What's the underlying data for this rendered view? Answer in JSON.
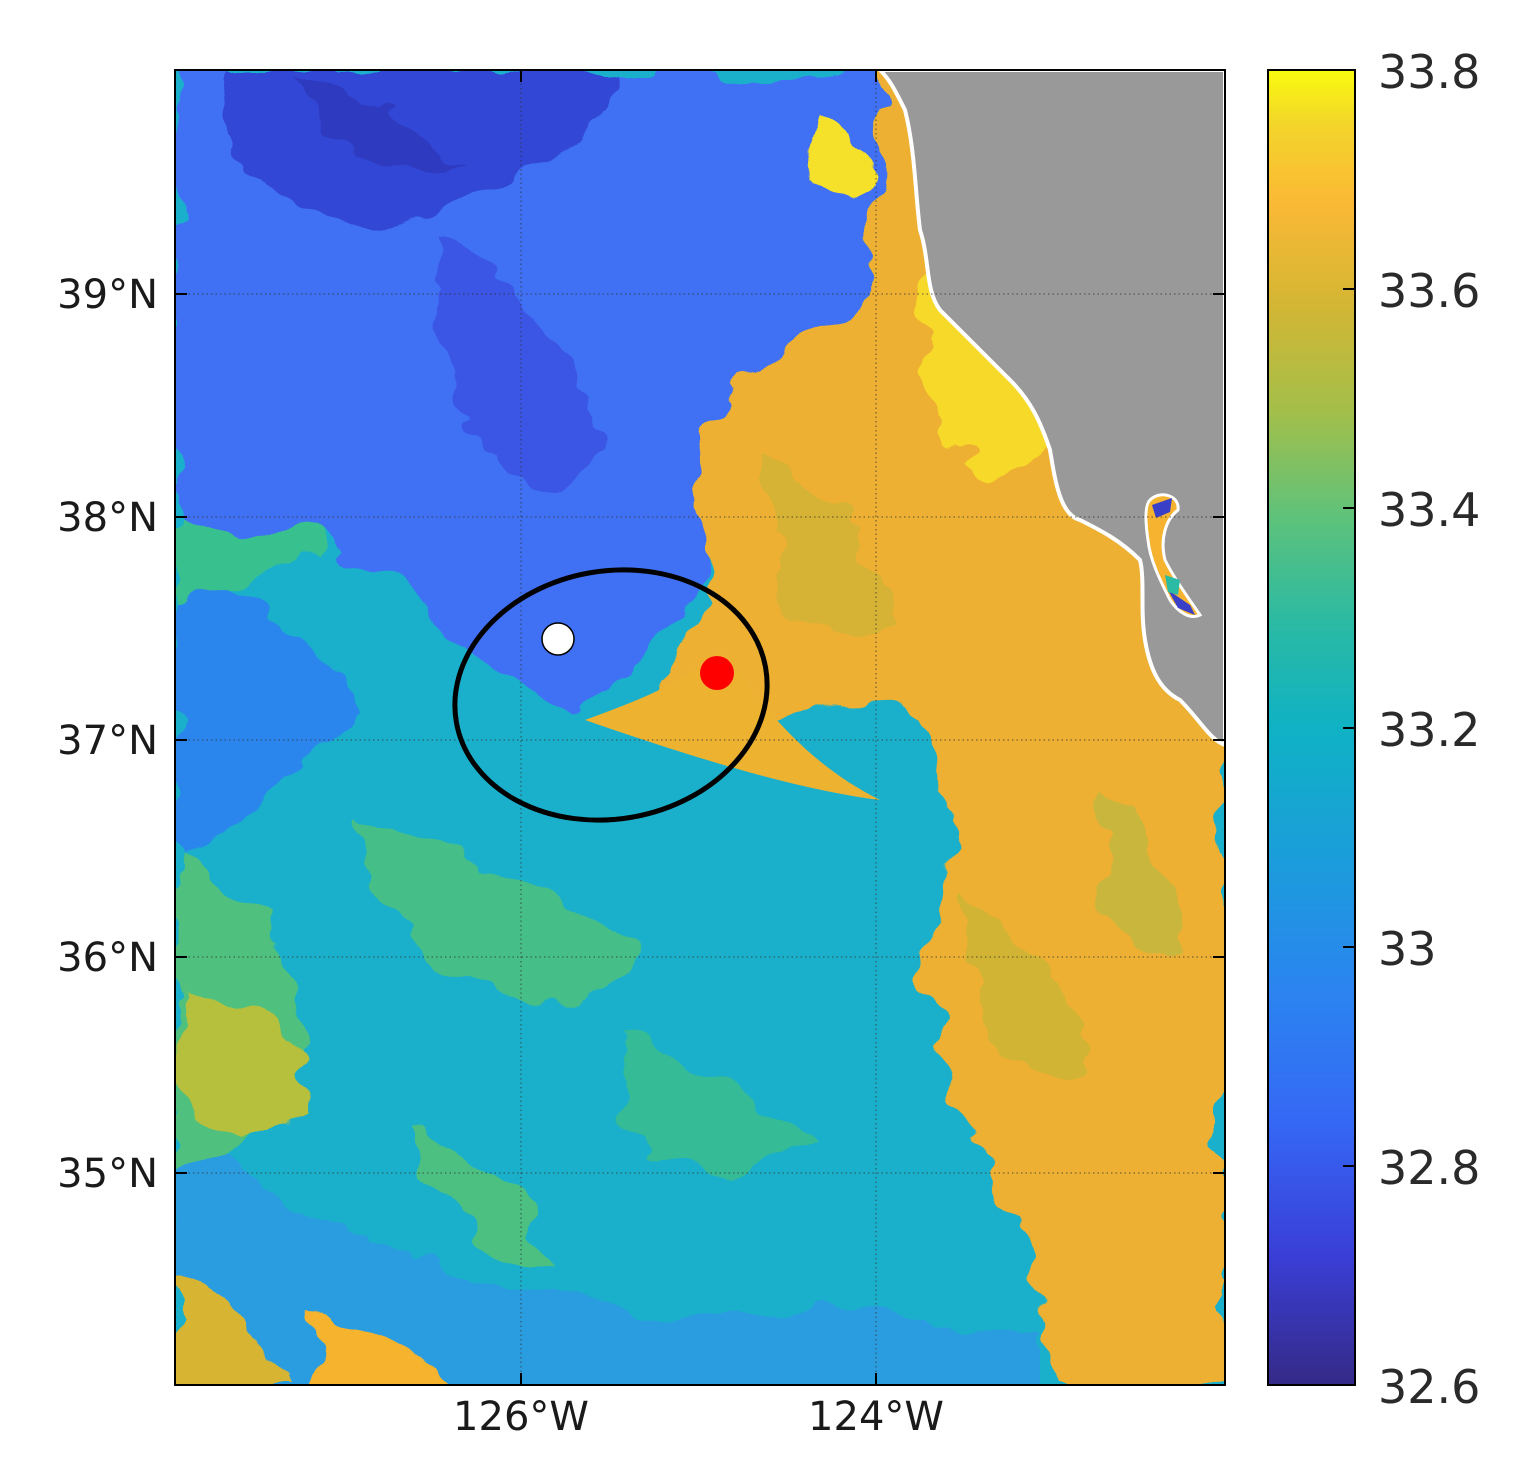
{
  "map": {
    "variable_colorbar": {
      "min": 32.6,
      "max": 33.8,
      "tick_labels": [
        "32.6",
        "32.8",
        "33",
        "33.2",
        "33.4",
        "33.6",
        "33.8"
      ],
      "colormap": "parula"
    },
    "axes": {
      "lat_ticks": [
        "39°N",
        "38°N",
        "37°N",
        "36°N",
        "35°N"
      ],
      "lon_ticks": [
        "126°W",
        "124°W"
      ],
      "grid": true
    },
    "markers": {
      "white_point": {
        "lon": -125.8,
        "lat": 37.45,
        "color": "#ffffff"
      },
      "red_point": {
        "lon": -125.1,
        "lat": 37.3,
        "color": "#ff0000"
      }
    },
    "ellipse": {
      "color": "#000000",
      "center_lon": -125.35,
      "center_lat": 37.15
    },
    "land_color": "#999999"
  },
  "chart_data": {
    "type": "heatmap",
    "title": "",
    "xlabel": "",
    "ylabel": "",
    "xlim_lon": [
      -127.0,
      -121.0
    ],
    "ylim_lat": [
      34.0,
      40.0
    ],
    "colorbar_range": [
      32.6,
      33.8
    ],
    "colorbar_ticks": [
      32.6,
      32.8,
      33.0,
      33.2,
      33.4,
      33.6,
      33.8
    ],
    "points": [
      {
        "lon": -125.8,
        "lat": 37.45,
        "color": "white"
      },
      {
        "lon": -125.1,
        "lat": 37.3,
        "color": "red"
      }
    ]
  }
}
